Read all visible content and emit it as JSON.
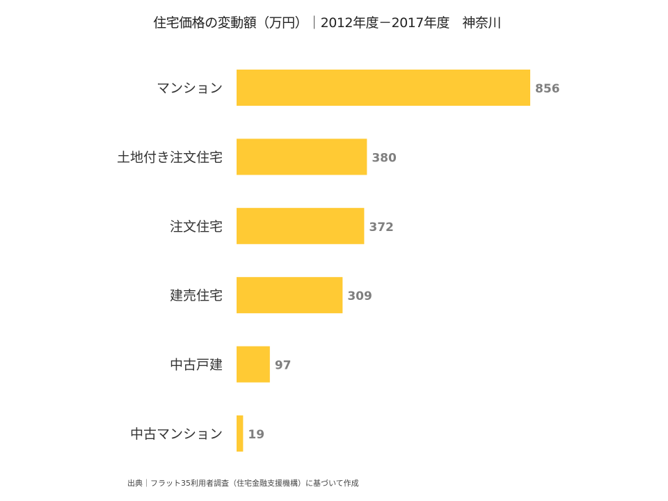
{
  "chart_data": {
    "type": "bar",
    "orientation": "horizontal",
    "title": "住宅価格の変動額（万円）｜2012年度－2017年度　神奈川",
    "categories": [
      "マンション",
      "土地付き注文住宅",
      "注文住宅",
      "建売住宅",
      "中古戸建",
      "中古マンション"
    ],
    "values": [
      856,
      380,
      372,
      309,
      97,
      19
    ],
    "xlim": [
      0,
      856
    ],
    "grid": false,
    "data_labels": true,
    "colors": {
      "bar": "#FFCA34",
      "label": "#7F7F7F"
    }
  },
  "footer": "出典｜フラット35利用者調査（住宅金融支援機構）に基づいて作成"
}
